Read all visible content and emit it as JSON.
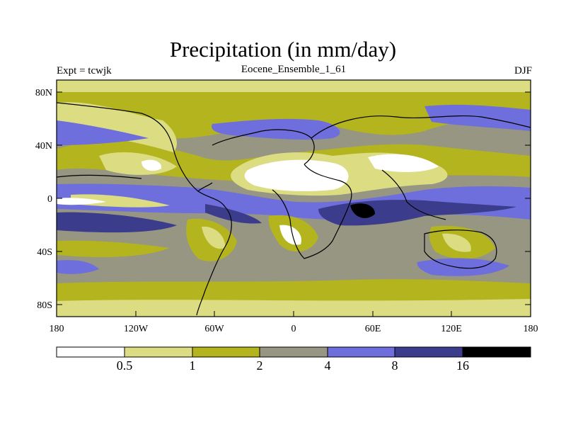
{
  "title": "Precipitation (in mm/day)",
  "left_label": "Expt = tcwjk",
  "center_label": "Eocene_Ensemble_1_61",
  "right_label": "DJF",
  "lat_ticks": [
    "80N",
    "40N",
    "0",
    "40S",
    "80S"
  ],
  "lon_ticks": [
    "180",
    "120W",
    "60W",
    "0",
    "60E",
    "120E",
    "180"
  ],
  "colorbar": {
    "levels": [
      "0.5",
      "1",
      "2",
      "4",
      "8",
      "16"
    ],
    "colors": [
      "#ffffff",
      "#dcdc82",
      "#b4b41e",
      "#969682",
      "#6e6edc",
      "#3c3c8c",
      "#000000"
    ]
  }
}
